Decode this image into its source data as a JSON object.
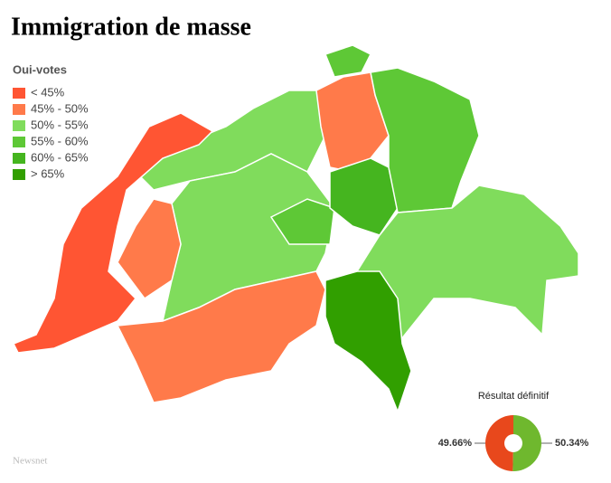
{
  "header": {
    "title": "Immigration de masse"
  },
  "legend": {
    "title": "Oui-votes",
    "items": [
      {
        "label": "< 45%",
        "color": "#ff5533"
      },
      {
        "label": "45% - 50%",
        "color": "#ff7a4a"
      },
      {
        "label": "50% - 55%",
        "color": "#80dc5c"
      },
      {
        "label": "55% - 60%",
        "color": "#5ec836"
      },
      {
        "label": "60% - 65%",
        "color": "#45b51f"
      },
      {
        "label": "> 65%",
        "color": "#319f00"
      }
    ]
  },
  "chart_data": {
    "type": "donut",
    "title": "Résultat définitif",
    "values": [
      49.66,
      50.34
    ],
    "value_labels": [
      "49.66%",
      "50.34%"
    ],
    "colors": [
      "#e8481c",
      "#6fb82e"
    ]
  },
  "source": "Newsnet"
}
